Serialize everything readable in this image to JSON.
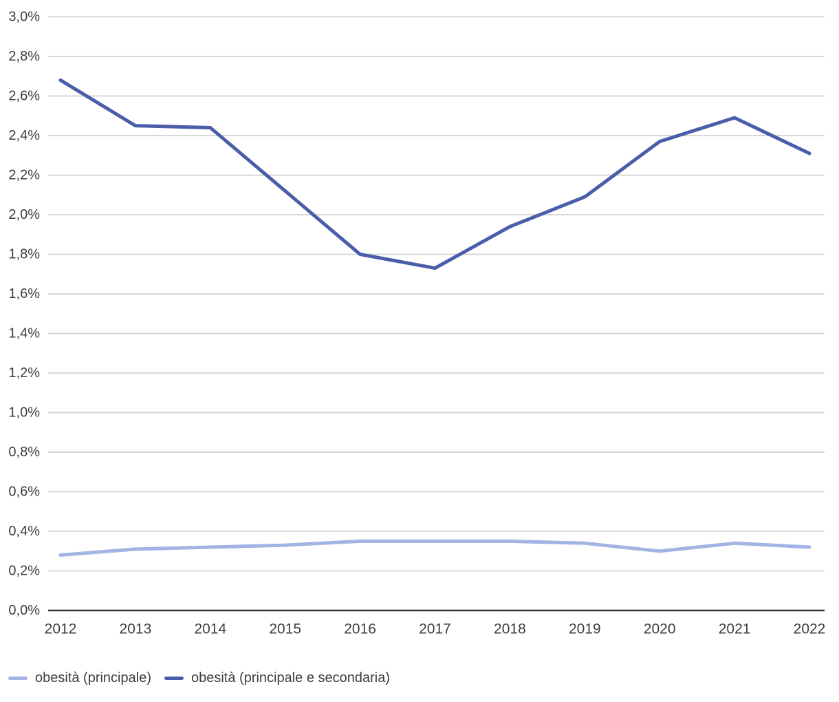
{
  "chart_data": {
    "type": "line",
    "title": "",
    "xlabel": "",
    "ylabel": "",
    "x_categories": [
      "2012",
      "2013",
      "2014",
      "2015",
      "2016",
      "2017",
      "2018",
      "2019",
      "2020",
      "2021",
      "2022"
    ],
    "y_axis": {
      "min": 0.0,
      "max": 3.0,
      "step": 0.2,
      "unit": "%",
      "decimal_separator": ",",
      "tick_labels": [
        "0,0%",
        "0,2%",
        "0,4%",
        "0,6%",
        "0,8%",
        "1,0%",
        "1,2%",
        "1,4%",
        "1,6%",
        "1,8%",
        "2,0%",
        "2,2%",
        "2,4%",
        "2,6%",
        "2,8%",
        "3,0%"
      ]
    },
    "grid": true,
    "legend_position": "bottom-left",
    "series": [
      {
        "name": "obesità (principale)",
        "color": "#a3b3e3",
        "values": [
          0.28,
          0.31,
          0.32,
          0.33,
          0.35,
          0.35,
          0.35,
          0.34,
          0.3,
          0.34,
          0.32
        ]
      },
      {
        "name": "obesità (principale e secondaria)",
        "color": "#4a5da9",
        "values": [
          2.68,
          2.45,
          2.44,
          2.12,
          1.8,
          1.73,
          1.94,
          2.09,
          2.37,
          2.49,
          2.31
        ]
      }
    ]
  },
  "colors": {
    "gridline": "#d2d2d2",
    "axis_line": "#333333",
    "tick_text": "#3d3d3d",
    "background": "#ffffff"
  }
}
